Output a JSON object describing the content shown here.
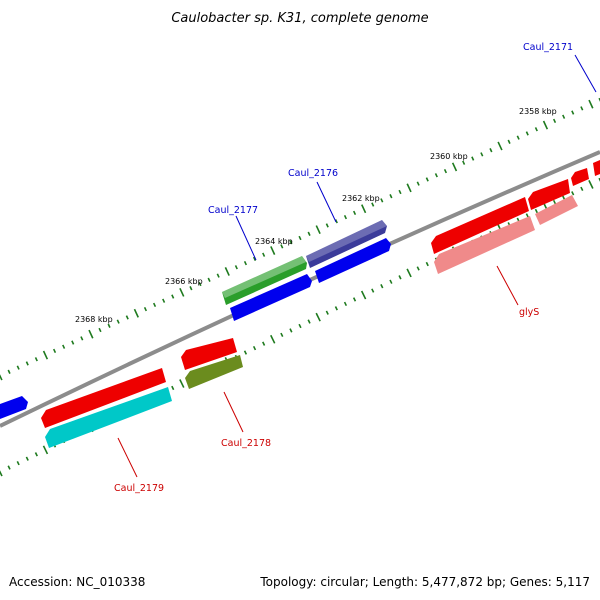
{
  "title": "Caulobacter sp. K31, complete genome",
  "footer": {
    "accession": "Accession: NC_010338",
    "summary": "Topology: circular; Length: 5,477,872 bp; Genes: 5,117"
  },
  "colors": {
    "backbone": "#8c8c8c",
    "ticks": "#1e7a1e",
    "label_blue": "#0000cc",
    "label_red": "#cc0000"
  },
  "ticks": {
    "labels": [
      "2358 kbp",
      "2360 kbp",
      "2362 kbp",
      "2364 kbp",
      "2366 kbp",
      "2368 kbp"
    ]
  },
  "genes": {
    "outer_forward": [
      {
        "color": "#3b3b9a",
        "label": "Caul_2176"
      },
      {
        "color": "#2a9e2a",
        "label": "Caul_2177"
      }
    ],
    "inner_forward": [
      {
        "color": "#0000ee"
      },
      {
        "color": "#0000ee"
      },
      {
        "color": "#0000ee"
      }
    ],
    "inner_reverse": [
      {
        "color": "#ee0000"
      },
      {
        "color": "#ee0000"
      },
      {
        "color": "#ee0000"
      },
      {
        "color": "#ee0000"
      },
      {
        "color": "#ee0000"
      }
    ],
    "outer_reverse": [
      {
        "color": "#f08a8a",
        "label": "glyS"
      },
      {
        "color": "#f08a8a"
      },
      {
        "color": "#6b8c1e",
        "label": "Caul_2178"
      },
      {
        "color": "#00c8c8",
        "label": "Caul_2179"
      }
    ],
    "extra_labels": [
      "Caul_2171"
    ]
  }
}
